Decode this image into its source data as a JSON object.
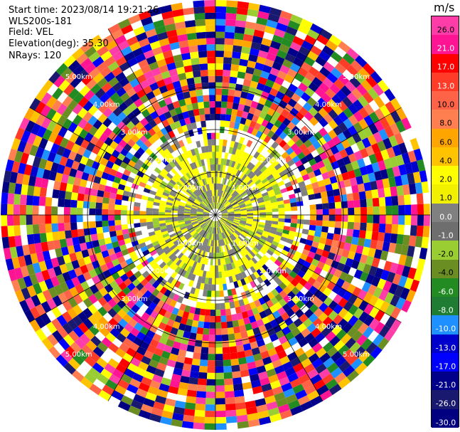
{
  "header": {
    "start_time": "Start time: 2023/08/14 19:21:26",
    "instrument": "WLS200s-181",
    "field": "Field: VEL",
    "elevation": "Elevation(deg): 35.30",
    "nrays": "NRays: 120"
  },
  "colorbar": {
    "unit": "m/s",
    "labels": [
      "26.0",
      "21.0",
      "17.0",
      "13.0",
      "10.0",
      "8.0",
      "6.0",
      "4.0",
      "2.0",
      "1.0",
      "0.0",
      "-1.0",
      "-2.0",
      "-4.0",
      "-6.0",
      "-8.0",
      "-10.0",
      "-13.0",
      "-17.0",
      "-21.0",
      "-26.0",
      "-30.0"
    ],
    "colors": [
      "#ff3da8",
      "#ff1493",
      "#ff0000",
      "#ff3c28",
      "#ff6347",
      "#ff7f50",
      "#ffa500",
      "#ffc300",
      "#ffff00",
      "#f0f000",
      "#808080",
      "#6e6e6e",
      "#9acd32",
      "#6b8e23",
      "#228b22",
      "#1e7d32",
      "#1e90ff",
      "#0000cd",
      "#0000ff",
      "#00008b",
      "#191970",
      "#000080"
    ]
  },
  "range_rings": {
    "labels": [
      "1.00km",
      "2.00km",
      "3.00km",
      "4.00km",
      "5.00km"
    ]
  }
}
